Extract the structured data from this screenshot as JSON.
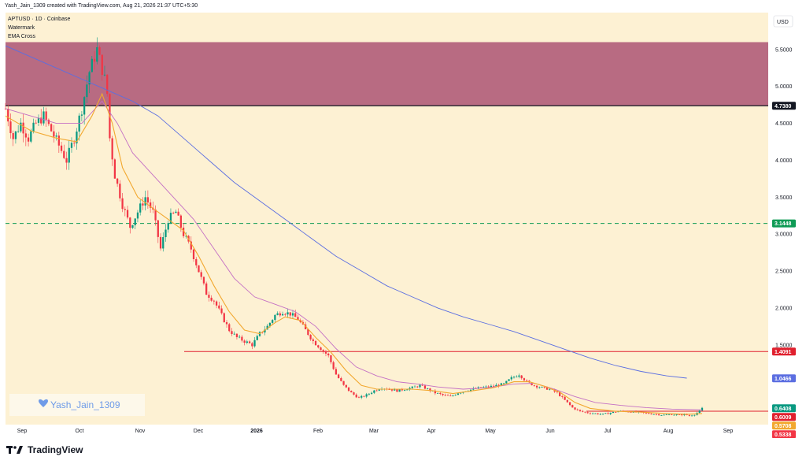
{
  "header": {
    "created_by": "Yash_Jain_1309 created with TradingView.com, Aug 21, 2026 21:37 UTC+5:30"
  },
  "legend": {
    "symbol": "APTUSD · 1D · Coinbase",
    "watermark": "Watermark",
    "indicator": "EMA Cross"
  },
  "currency": "USD",
  "watermark_name": "Yash_Jain_1309",
  "brand": "TradingView",
  "colors": {
    "background": "#fdf1d3",
    "zone": "#b86b82",
    "up": "#089981",
    "down": "#f23645",
    "ema_fast": "#f2a82f",
    "ema_slow": "#c46fc4",
    "ema_long": "#5b6ee1",
    "level_red": "#e0202e",
    "level_green": "#0f9b55"
  },
  "chart_data": {
    "type": "candlestick",
    "x_ticks": [
      "Sep",
      "Oct",
      "Nov",
      "Dec",
      "2026",
      "Feb",
      "Mar",
      "Apr",
      "May",
      "Jun",
      "Jul",
      "Aug",
      "Sep"
    ],
    "y_ticks": [
      "5.5000",
      "5.0000",
      "4.5000",
      "4.0000",
      "3.5000",
      "3.0000",
      "2.5000",
      "2.0000",
      "1.5000"
    ],
    "ylim": [
      0.42,
      6.0
    ],
    "resistance_zone": [
      4.738,
      5.6
    ],
    "levels": [
      {
        "value": 4.738,
        "label": "4.7380",
        "style": "solid-black"
      },
      {
        "value": 3.1448,
        "label": "3.1448",
        "style": "dashed-green"
      },
      {
        "value": 1.4091,
        "label": "1.4091",
        "style": "solid-red"
      },
      {
        "value": 0.6009,
        "label": "0.6009",
        "style": "solid-red"
      }
    ],
    "price_tags": [
      {
        "value": 1.0466,
        "label": "1.0466",
        "color": "#5b6ee1"
      },
      {
        "value": 0.6408,
        "label": "0.6408",
        "color": "#089981"
      },
      {
        "value": 0.5708,
        "label": "0.5708",
        "color": "#f2a82f"
      },
      {
        "value": 0.5338,
        "label": "0.5338",
        "color": "#f23645"
      }
    ],
    "close_path": [
      [
        0,
        4.7
      ],
      [
        3,
        4.3
      ],
      [
        6,
        4.5
      ],
      [
        9,
        4.3
      ],
      [
        12,
        4.5
      ],
      [
        15,
        4.6
      ],
      [
        18,
        4.4
      ],
      [
        21,
        4.2
      ],
      [
        24,
        4.0
      ],
      [
        27,
        4.3
      ],
      [
        30,
        4.7
      ],
      [
        33,
        5.2
      ],
      [
        36,
        5.5
      ],
      [
        39,
        5.1
      ],
      [
        40,
        4.9
      ],
      [
        41,
        4.3
      ],
      [
        43,
        3.8
      ],
      [
        46,
        3.4
      ],
      [
        49,
        3.1
      ],
      [
        52,
        3.3
      ],
      [
        55,
        3.5
      ],
      [
        58,
        3.3
      ],
      [
        61,
        2.8
      ],
      [
        64,
        3.2
      ],
      [
        67,
        3.3
      ],
      [
        70,
        3.0
      ],
      [
        73,
        2.8
      ],
      [
        76,
        2.5
      ],
      [
        79,
        2.2
      ],
      [
        82,
        2.1
      ],
      [
        85,
        1.9
      ],
      [
        88,
        1.7
      ],
      [
        91,
        1.6
      ],
      [
        94,
        1.55
      ],
      [
        97,
        1.5
      ],
      [
        100,
        1.65
      ],
      [
        103,
        1.75
      ],
      [
        106,
        1.9
      ],
      [
        109,
        1.95
      ],
      [
        112,
        1.92
      ],
      [
        115,
        1.85
      ],
      [
        118,
        1.7
      ],
      [
        121,
        1.55
      ],
      [
        124,
        1.45
      ],
      [
        127,
        1.35
      ],
      [
        130,
        1.1
      ],
      [
        133,
        0.95
      ],
      [
        136,
        0.85
      ],
      [
        139,
        0.78
      ],
      [
        142,
        0.82
      ],
      [
        145,
        0.88
      ],
      [
        148,
        0.92
      ],
      [
        151,
        0.9
      ],
      [
        154,
        0.88
      ],
      [
        157,
        0.9
      ],
      [
        160,
        0.92
      ],
      [
        163,
        0.95
      ],
      [
        166,
        0.9
      ],
      [
        169,
        0.85
      ],
      [
        172,
        0.82
      ],
      [
        175,
        0.8
      ],
      [
        178,
        0.85
      ],
      [
        181,
        0.88
      ],
      [
        184,
        0.9
      ],
      [
        187,
        0.92
      ],
      [
        190,
        0.93
      ],
      [
        193,
        0.95
      ],
      [
        196,
        0.97
      ],
      [
        199,
        1.05
      ],
      [
        202,
        1.1
      ],
      [
        205,
        1.0
      ],
      [
        208,
        0.95
      ],
      [
        211,
        0.92
      ],
      [
        214,
        0.9
      ],
      [
        217,
        0.85
      ],
      [
        220,
        0.75
      ],
      [
        223,
        0.65
      ],
      [
        226,
        0.6
      ],
      [
        229,
        0.58
      ],
      [
        232,
        0.57
      ],
      [
        235,
        0.56
      ],
      [
        238,
        0.58
      ],
      [
        241,
        0.6
      ],
      [
        244,
        0.6
      ],
      [
        247,
        0.59
      ],
      [
        250,
        0.58
      ],
      [
        253,
        0.57
      ],
      [
        256,
        0.56
      ],
      [
        259,
        0.55
      ],
      [
        262,
        0.56
      ],
      [
        265,
        0.55
      ],
      [
        267,
        0.56
      ],
      [
        269,
        0.54
      ],
      [
        271,
        0.56
      ],
      [
        273,
        0.6
      ],
      [
        274,
        0.64
      ]
    ],
    "ema_fast": [
      [
        0,
        4.6
      ],
      [
        10,
        4.4
      ],
      [
        20,
        4.3
      ],
      [
        28,
        4.25
      ],
      [
        34,
        4.6
      ],
      [
        38,
        4.9
      ],
      [
        42,
        4.5
      ],
      [
        46,
        3.9
      ],
      [
        52,
        3.5
      ],
      [
        58,
        3.35
      ],
      [
        64,
        3.2
      ],
      [
        70,
        3.05
      ],
      [
        76,
        2.7
      ],
      [
        82,
        2.3
      ],
      [
        88,
        1.95
      ],
      [
        94,
        1.7
      ],
      [
        100,
        1.65
      ],
      [
        106,
        1.8
      ],
      [
        110,
        1.88
      ],
      [
        116,
        1.83
      ],
      [
        122,
        1.6
      ],
      [
        128,
        1.4
      ],
      [
        134,
        1.15
      ],
      [
        140,
        0.95
      ],
      [
        146,
        0.9
      ],
      [
        152,
        0.9
      ],
      [
        160,
        0.9
      ],
      [
        168,
        0.88
      ],
      [
        176,
        0.84
      ],
      [
        184,
        0.88
      ],
      [
        192,
        0.92
      ],
      [
        200,
        1.0
      ],
      [
        206,
        1.0
      ],
      [
        212,
        0.94
      ],
      [
        218,
        0.86
      ],
      [
        224,
        0.72
      ],
      [
        230,
        0.64
      ],
      [
        240,
        0.6
      ],
      [
        250,
        0.59
      ],
      [
        260,
        0.57
      ],
      [
        268,
        0.56
      ],
      [
        274,
        0.57
      ]
    ],
    "ema_slow": [
      [
        0,
        4.7
      ],
      [
        10,
        4.6
      ],
      [
        20,
        4.5
      ],
      [
        30,
        4.5
      ],
      [
        38,
        4.8
      ],
      [
        44,
        4.5
      ],
      [
        50,
        4.1
      ],
      [
        58,
        3.8
      ],
      [
        66,
        3.5
      ],
      [
        74,
        3.2
      ],
      [
        82,
        2.8
      ],
      [
        90,
        2.4
      ],
      [
        98,
        2.15
      ],
      [
        106,
        2.05
      ],
      [
        114,
        1.95
      ],
      [
        122,
        1.75
      ],
      [
        130,
        1.45
      ],
      [
        138,
        1.2
      ],
      [
        146,
        1.08
      ],
      [
        154,
        1.0
      ],
      [
        162,
        0.97
      ],
      [
        170,
        0.93
      ],
      [
        180,
        0.9
      ],
      [
        190,
        0.92
      ],
      [
        200,
        0.97
      ],
      [
        208,
        0.98
      ],
      [
        216,
        0.9
      ],
      [
        224,
        0.8
      ],
      [
        232,
        0.72
      ],
      [
        242,
        0.68
      ],
      [
        252,
        0.65
      ],
      [
        262,
        0.63
      ],
      [
        274,
        0.62
      ]
    ],
    "ema_long": [
      [
        0,
        5.55
      ],
      [
        10,
        5.4
      ],
      [
        20,
        5.25
      ],
      [
        30,
        5.1
      ],
      [
        40,
        4.95
      ],
      [
        50,
        4.8
      ],
      [
        60,
        4.6
      ],
      [
        70,
        4.3
      ],
      [
        80,
        4.0
      ],
      [
        90,
        3.7
      ],
      [
        100,
        3.45
      ],
      [
        110,
        3.2
      ],
      [
        120,
        2.95
      ],
      [
        130,
        2.7
      ],
      [
        140,
        2.5
      ],
      [
        150,
        2.3
      ],
      [
        160,
        2.15
      ],
      [
        170,
        2.0
      ],
      [
        180,
        1.88
      ],
      [
        190,
        1.78
      ],
      [
        200,
        1.68
      ],
      [
        210,
        1.56
      ],
      [
        220,
        1.44
      ],
      [
        230,
        1.32
      ],
      [
        240,
        1.22
      ],
      [
        250,
        1.14
      ],
      [
        260,
        1.08
      ],
      [
        268,
        1.05
      ]
    ]
  }
}
